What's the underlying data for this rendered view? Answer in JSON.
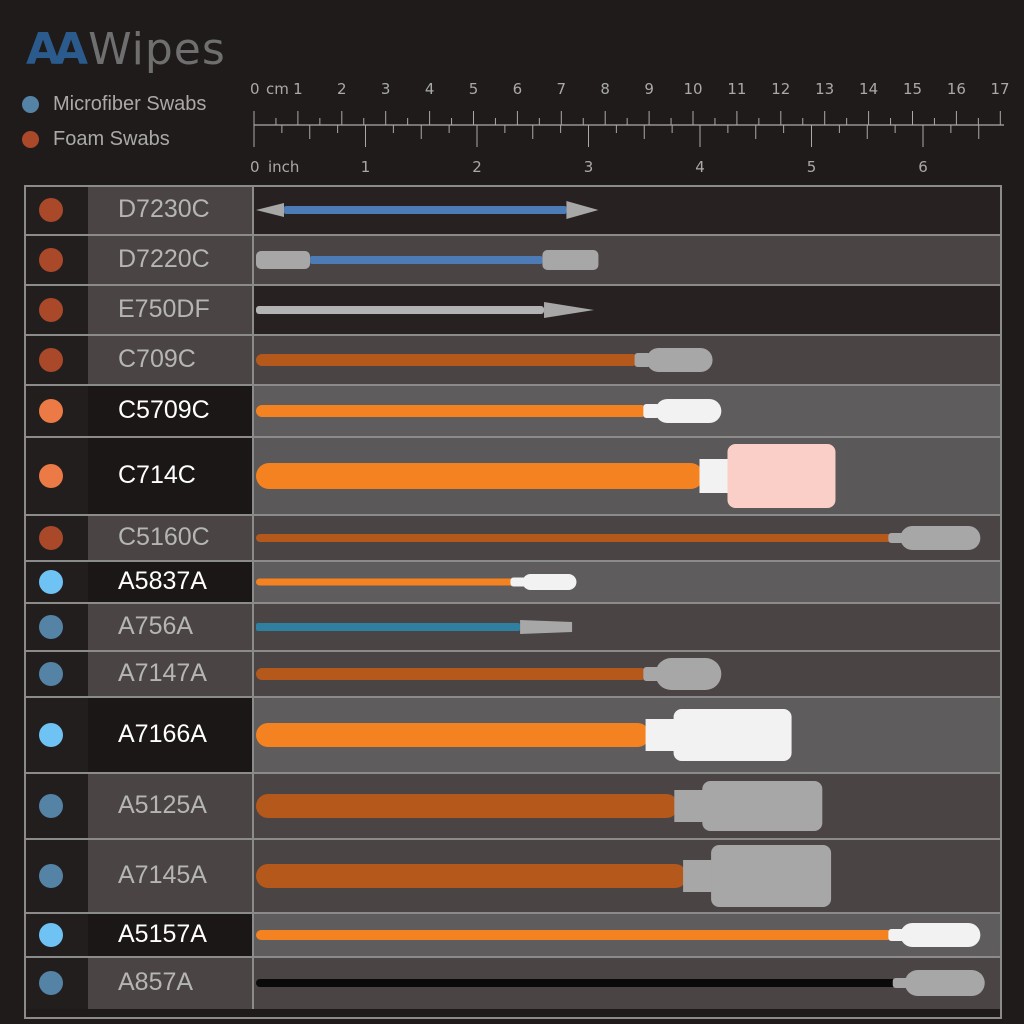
{
  "logo": {
    "mark": "AA",
    "text": "Wipes"
  },
  "legend": [
    {
      "label": "Microfiber Swabs",
      "color": "#5583a6"
    },
    {
      "label": "Foam Swabs",
      "color": "#a9492a"
    }
  ],
  "ruler": {
    "cm_unit": "cm",
    "cm_labels": [
      "0",
      "1",
      "2",
      "3",
      "4",
      "5",
      "6",
      "7",
      "8",
      "9",
      "10",
      "11",
      "12",
      "13",
      "14",
      "15",
      "16",
      "17"
    ],
    "inch_unit": "inch",
    "inch_labels": [
      "0",
      "1",
      "2",
      "3",
      "4",
      "5",
      "6"
    ]
  },
  "colors": {
    "table_bg_dark": "#231e1e",
    "table_bg_mid": "#4a4444",
    "table_bg_light": "#5e5c5c",
    "foam_dot": "#a9492a",
    "foam_dot_bright": "#ec7a46",
    "micro_dot": "#5583a6",
    "micro_dot_bright": "#6fc3f4",
    "orange_handle": "#f58220",
    "brown_handle": "#b4581c",
    "blue_handle": "#4d7bb6",
    "grey_handle": "#b3b3b3",
    "black_handle": "#0a0a0a",
    "tip_white": "#f2f2f2",
    "tip_grey": "#a7a7a7",
    "tip_pink": "#f9cfc8"
  },
  "swabs": [
    {
      "code": "D7230C",
      "family": "foam",
      "highlight": false,
      "tip": "double-pointed",
      "handle": "blue",
      "length_cm": 7.8
    },
    {
      "code": "D7220C",
      "family": "foam",
      "highlight": false,
      "tip": "double-rounded",
      "handle": "blue",
      "length_cm": 7.8
    },
    {
      "code": "E750DF",
      "family": "foam",
      "highlight": false,
      "tip": "pointed",
      "handle": "grey",
      "length_cm": 7.7
    },
    {
      "code": "C709C",
      "family": "foam",
      "highlight": false,
      "tip": "round paddle",
      "handle": "brown",
      "length_cm": 10.4
    },
    {
      "code": "C5709C",
      "family": "foam",
      "highlight": true,
      "tip": "round paddle",
      "handle": "orange",
      "length_cm": 10.6
    },
    {
      "code": "C714C",
      "family": "foam",
      "highlight": true,
      "tip": "square paddle",
      "handle": "orange",
      "length_cm": 13.2
    },
    {
      "code": "C5160C",
      "family": "foam",
      "highlight": false,
      "tip": "round paddle",
      "handle": "brown",
      "length_cm": 16.5
    },
    {
      "code": "A5837A",
      "family": "microfiber",
      "highlight": true,
      "tip": "small paddle",
      "handle": "orange",
      "length_cm": 7.3
    },
    {
      "code": "A756A",
      "family": "microfiber",
      "highlight": false,
      "tip": "tapered",
      "handle": "teal",
      "length_cm": 7.2
    },
    {
      "code": "A7147A",
      "family": "microfiber",
      "highlight": false,
      "tip": "round paddle",
      "handle": "brown",
      "length_cm": 10.6
    },
    {
      "code": "A7166A",
      "family": "microfiber",
      "highlight": true,
      "tip": "square paddle",
      "handle": "orange",
      "length_cm": 12.2
    },
    {
      "code": "A5125A",
      "family": "microfiber",
      "highlight": false,
      "tip": "square paddle",
      "handle": "brown",
      "length_cm": 12.9
    },
    {
      "code": "A7145A",
      "family": "microfiber",
      "highlight": false,
      "tip": "square paddle",
      "handle": "brown",
      "length_cm": 13.1
    },
    {
      "code": "A5157A",
      "family": "microfiber",
      "highlight": true,
      "tip": "round paddle",
      "handle": "orange",
      "length_cm": 16.5
    },
    {
      "code": "A857A",
      "family": "microfiber",
      "highlight": false,
      "tip": "round paddle",
      "handle": "black",
      "length_cm": 16.6
    }
  ]
}
